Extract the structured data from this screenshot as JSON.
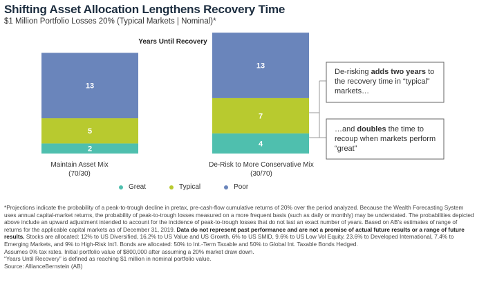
{
  "header": {
    "title": "Shifting Asset Allocation Lengthens Recovery Time",
    "subtitle": "$1 Million Portfolio Losses 20% (Typical Markets | Nominal)*"
  },
  "chart_data": {
    "type": "bar",
    "stacked": true,
    "title": "Years Until Recovery",
    "categories": [
      "Maintain Asset Mix\n(70/30)",
      "De-Risk to More Conservative Mix\n(30/70)"
    ],
    "series": [
      {
        "name": "Great",
        "values": [
          2,
          4
        ],
        "color": "#4fbfae"
      },
      {
        "name": "Typical",
        "values": [
          5,
          7
        ],
        "color": "#b8ca2f"
      },
      {
        "name": "Poor",
        "values": [
          13,
          13
        ],
        "color": "#6a85bb"
      }
    ],
    "legend_position": "bottom",
    "grid": false
  },
  "category_labels": [
    {
      "line1": "Maintain Asset Mix",
      "line2": "(70/30)"
    },
    {
      "line1": "De-Risk to More Conservative Mix",
      "line2": "(30/70)"
    }
  ],
  "callouts": [
    {
      "pre": "De-risking ",
      "bold": "adds two years",
      "post": " to the recovery time in “typical” markets…"
    },
    {
      "pre": "…and ",
      "bold": "doubles",
      "post": " the time to recoup when markets perform “great”"
    }
  ],
  "footnote": {
    "para1_pre": "*Projections indicate the probability of a peak-to-trough decline in pretax, pre-cash-flow cumulative returns of 20% over the period analyzed. Because the Wealth Forecasting System uses annual capital-market returns, the probability of peak-to-trough losses measured on a more frequent basis (such as daily or monthly) may be understated. The probabilities depicted above include an upward adjustment intended to account for the incidence of peak-to-trough losses that do not last an exact number of years. Based on AB’s estimates of range of returns for the applicable capital markets as of December 31, 2019. ",
    "para1_bold": "Data do not represent past performance and are not a promise of actual future results or a range of future results.",
    "para1_post": " Stocks are allocated: 12% to US Diversified, 16.2% to US Value and US Growth, 6% to US SMID, 9.6% to US Low Vol Equity, 23.6% to Developed International, 7.4% to Emerging Markets, and 9% to High-Risk Int’l. Bonds are allocated: 50% to Int.-Term Taxable and 50% to Global Int. Taxable Bonds Hedged.",
    "line2": "Assumes 0% tax rates. Initial portfolio value of $800,000 after assuming a 20% market draw down.",
    "line3": "“Years Until Recovery” is defined as reaching $1 million in nominal portfolio value.",
    "line4": "Source: AllianceBernstein (AB)"
  }
}
